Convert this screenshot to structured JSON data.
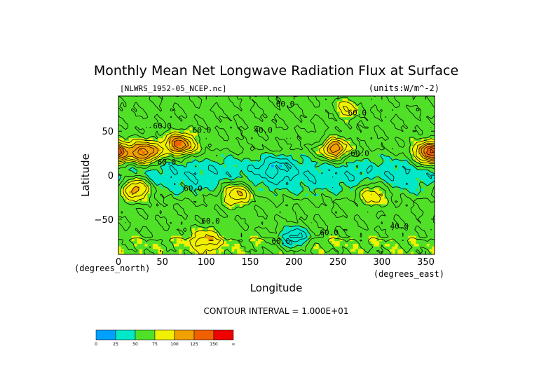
{
  "chart_data": {
    "type": "heatmap",
    "title": "Monthly Mean Net Longwave Radiation Flux at Surface",
    "dataset": "[NLWRS_1952-05_NCEP.nc]",
    "units": "(units:W/m^-2)",
    "xlabel": "Longitude",
    "ylabel": "Latitude",
    "x_unit": "(degrees_east)",
    "y_unit": "(degrees_north)",
    "xlim": [
      0,
      360
    ],
    "ylim": [
      -90,
      90
    ],
    "x_ticks": [
      0,
      50,
      100,
      150,
      200,
      250,
      300,
      350
    ],
    "y_ticks": [
      50,
      0,
      -50
    ],
    "y_tick_labels": [
      "50",
      "0",
      "−50"
    ],
    "contour_interval": "CONTOUR INTERVAL = 1.000E+01",
    "contour_labels": [
      {
        "text": "60.0",
        "lon": 190,
        "lat": 78
      },
      {
        "text": "60.0",
        "lon": 272,
        "lat": 68
      },
      {
        "text": "60.0",
        "lon": 50,
        "lat": 53
      },
      {
        "text": "60.0",
        "lon": 95,
        "lat": 48
      },
      {
        "text": "40.0",
        "lon": 165,
        "lat": 48
      },
      {
        "text": "60.0",
        "lon": 275,
        "lat": 22
      },
      {
        "text": "60.0",
        "lon": 55,
        "lat": 12
      },
      {
        "text": "60.0",
        "lon": 85,
        "lat": -18
      },
      {
        "text": "60.0",
        "lon": 105,
        "lat": -55
      },
      {
        "text": "40.0",
        "lon": 320,
        "lat": -61
      },
      {
        "text": "60.0",
        "lon": 240,
        "lat": -68
      },
      {
        "text": "60.0",
        "lon": 185,
        "lat": -78
      }
    ],
    "colorbar": {
      "colors": [
        "#00a0ff",
        "#00e8c8",
        "#50e028",
        "#f0f000",
        "#f0a000",
        "#f06000",
        "#f00000"
      ],
      "tick_labels": [
        "0",
        "25",
        "50",
        "75",
        "100",
        "125",
        "150",
        "∞"
      ]
    },
    "features": [
      {
        "lon": 30,
        "lat": 25,
        "value": 130
      },
      {
        "lon": 70,
        "lat": 35,
        "value": 125
      },
      {
        "lon": 20,
        "lat": -15,
        "value": 120
      },
      {
        "lon": 135,
        "lat": -20,
        "value": 110
      },
      {
        "lon": 245,
        "lat": 30,
        "value": 120
      },
      {
        "lon": 290,
        "lat": -20,
        "value": 95
      },
      {
        "lon": 355,
        "lat": 25,
        "value": 140
      },
      {
        "lon": 180,
        "lat": 10,
        "value": 40
      },
      {
        "lon": 230,
        "lat": 40,
        "value": 45
      },
      {
        "lon": 260,
        "lat": 75,
        "value": 85
      },
      {
        "lon": 200,
        "lat": -72,
        "value": 20
      },
      {
        "lon": 100,
        "lat": -72,
        "value": 90
      }
    ]
  }
}
